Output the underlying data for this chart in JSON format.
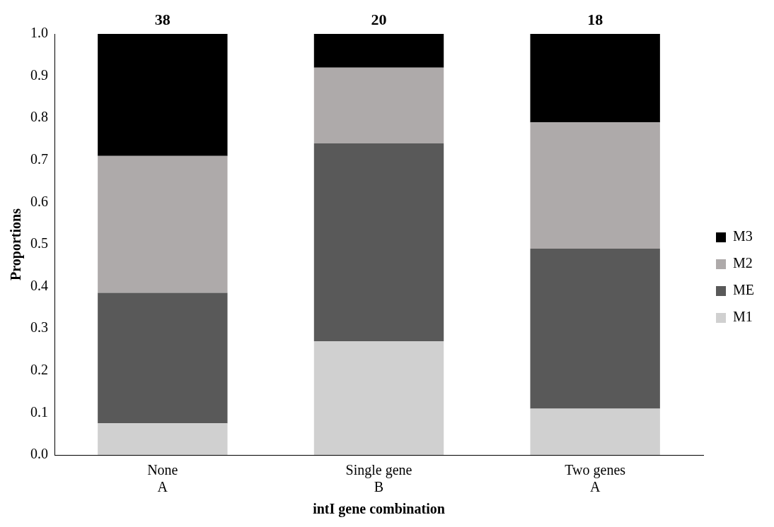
{
  "chart_data": {
    "type": "bar",
    "stacked": true,
    "xlabel": "intI gene combination",
    "ylabel": "Proportions",
    "categories": [
      "None\nA",
      "Single gene\nB",
      "Two genes\nA"
    ],
    "series": [
      {
        "name": "M1",
        "color": "#d0d0d0",
        "values": [
          0.075,
          0.27,
          0.11
        ]
      },
      {
        "name": "ME",
        "color": "#595959",
        "values": [
          0.31,
          0.47,
          0.38
        ]
      },
      {
        "name": "M2",
        "color": "#aeaaaa",
        "values": [
          0.325,
          0.18,
          0.3
        ]
      },
      {
        "name": "M3",
        "color": "#000000",
        "values": [
          0.29,
          0.08,
          0.21
        ]
      }
    ],
    "annotations": [
      {
        "text": "38",
        "x": "None\nA",
        "y": 1
      },
      {
        "text": "20",
        "x": "Single gene\nB",
        "y": 1
      },
      {
        "text": "18",
        "x": "Two genes\nA",
        "y": 1
      }
    ],
    "ylim": [
      0,
      1
    ],
    "yticks": [
      {
        "value": 0,
        "label": "0.0"
      },
      {
        "value": 0.1,
        "label": "0.1"
      },
      {
        "value": 0.2,
        "label": "0.2"
      },
      {
        "value": 0.3,
        "label": "0.3"
      },
      {
        "value": 0.4,
        "label": "0.4"
      },
      {
        "value": 0.5,
        "label": "0.5"
      },
      {
        "value": 0.6,
        "label": "0.6"
      },
      {
        "value": 0.7,
        "label": "0.7"
      },
      {
        "value": 0.8,
        "label": "0.8"
      },
      {
        "value": 0.9,
        "label": "0.9"
      },
      {
        "value": 1,
        "label": "1.0"
      }
    ],
    "grid": false,
    "legend": "right"
  }
}
